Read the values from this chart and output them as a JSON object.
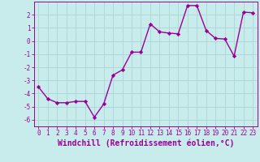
{
  "x": [
    0,
    1,
    2,
    3,
    4,
    5,
    6,
    7,
    8,
    9,
    10,
    11,
    12,
    13,
    14,
    15,
    16,
    17,
    18,
    19,
    20,
    21,
    22,
    23
  ],
  "y": [
    -3.5,
    -4.4,
    -4.7,
    -4.7,
    -4.6,
    -4.6,
    -5.8,
    -4.8,
    -2.6,
    -2.2,
    -0.85,
    -0.85,
    1.3,
    0.7,
    0.6,
    0.55,
    2.7,
    2.7,
    0.8,
    0.2,
    0.15,
    -1.15,
    2.2,
    2.15
  ],
  "line_color": "#990099",
  "marker": "D",
  "marker_size": 2.2,
  "bg_color": "#c8ecec",
  "grid_color": "#b0d8d8",
  "xlabel": "Windchill (Refroidissement éolien,°C)",
  "xlim": [
    -0.5,
    23.5
  ],
  "ylim": [
    -6.5,
    3.0
  ],
  "yticks": [
    -6,
    -5,
    -4,
    -3,
    -2,
    -1,
    0,
    1,
    2
  ],
  "xticks": [
    0,
    1,
    2,
    3,
    4,
    5,
    6,
    7,
    8,
    9,
    10,
    11,
    12,
    13,
    14,
    15,
    16,
    17,
    18,
    19,
    20,
    21,
    22,
    23
  ],
  "tick_label_fontsize": 5.5,
  "xlabel_fontsize": 7.0,
  "line_width": 1.0
}
